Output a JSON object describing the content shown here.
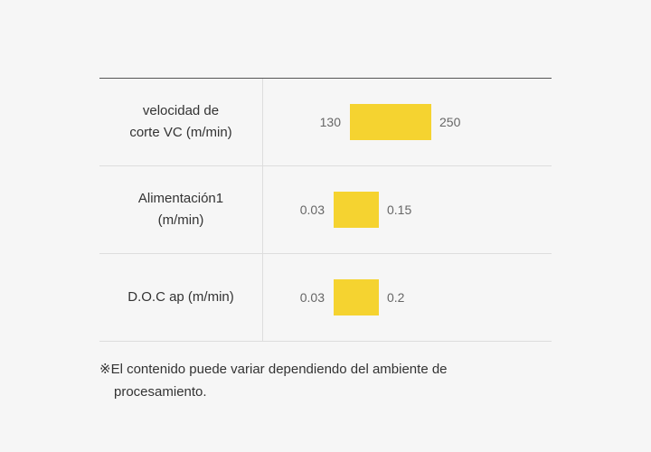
{
  "accent_color": "#f5d330",
  "rows": [
    {
      "label_line1": "velocidad de",
      "label_line2": "corte VC (m/min)",
      "min": "130",
      "max": "250"
    },
    {
      "label_line1": "Alimentación1",
      "label_line2": "(m/min)",
      "min": "0.03",
      "max": "0.15"
    },
    {
      "label_line1": "D.O.C ap (m/min)",
      "label_line2": "",
      "min": "0.03",
      "max": "0.2"
    }
  ],
  "footnote": {
    "line1": "※El contenido puede variar dependiendo del ambiente de",
    "line2": "procesamiento."
  }
}
